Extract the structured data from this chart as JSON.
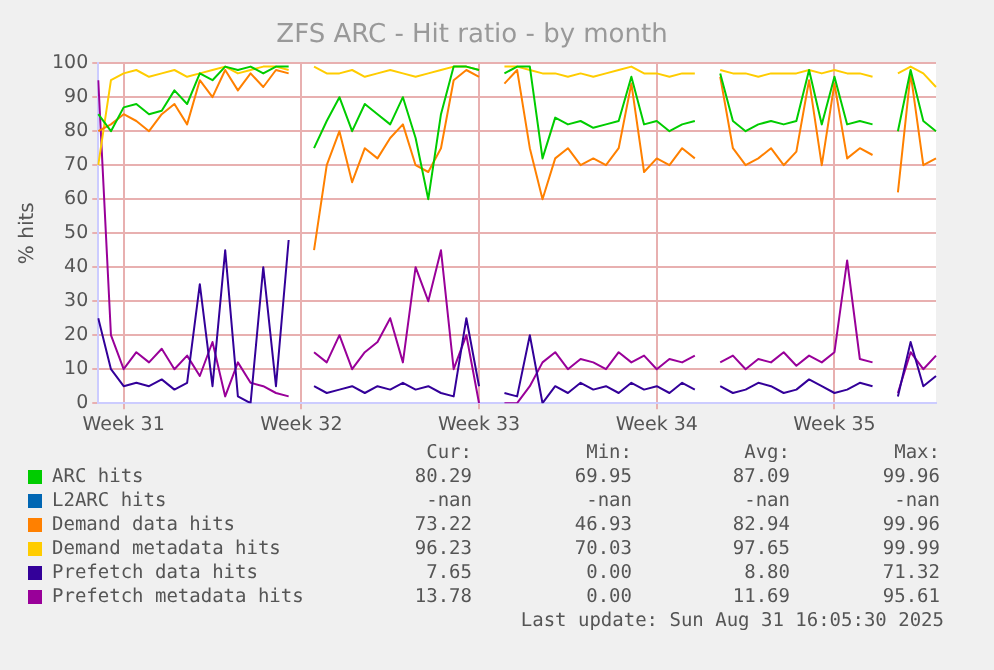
{
  "chart_data": {
    "type": "line",
    "title": "ZFS ARC - Hit ratio - by month",
    "ylabel": "% hits",
    "categories": [
      null,
      null,
      "Week 31",
      null,
      null,
      null,
      null,
      null,
      null,
      null,
      null,
      null,
      null,
      null,
      null,
      null,
      "Week 32",
      null,
      null,
      null,
      null,
      null,
      null,
      null,
      null,
      null,
      null,
      null,
      null,
      null,
      "Week 33",
      null,
      null,
      null,
      null,
      null,
      null,
      null,
      null,
      null,
      null,
      null,
      null,
      null,
      "Week 34",
      null,
      null,
      null,
      null,
      null,
      null,
      null,
      null,
      null,
      null,
      null,
      null,
      null,
      "Week 35",
      null,
      null,
      null,
      null,
      null,
      null,
      null,
      null
    ],
    "ylim": [
      0,
      100
    ],
    "yticks": [
      0,
      10,
      20,
      30,
      40,
      50,
      60,
      70,
      80,
      90,
      100
    ],
    "grid": true,
    "legend": "bottom",
    "line_style": "solid",
    "series": [
      {
        "name": "ARC hits",
        "color": "#00cc00",
        "values": [
          85,
          80,
          87,
          88,
          85,
          86,
          92,
          88,
          97,
          95,
          99,
          98,
          99,
          97,
          99,
          99,
          null,
          75,
          83,
          90,
          80,
          88,
          85,
          82,
          90,
          78,
          60,
          85,
          99,
          99,
          98,
          null,
          97,
          99,
          99,
          72,
          84,
          82,
          83,
          81,
          82,
          83,
          96,
          82,
          83,
          80,
          82,
          83,
          null,
          97,
          83,
          80,
          82,
          83,
          82,
          83,
          98,
          82,
          96,
          82,
          83,
          82,
          null,
          80,
          98,
          83,
          80
        ]
      },
      {
        "name": "L2ARC hits",
        "color": "#0066b3",
        "values": [
          null,
          null,
          null,
          null,
          null,
          null,
          null,
          null,
          null,
          null,
          null,
          null,
          null,
          null,
          null,
          null,
          null,
          null,
          null,
          null,
          null,
          null,
          null,
          null,
          null,
          null,
          null,
          null,
          null,
          null,
          null,
          null,
          null,
          null,
          null,
          null,
          null,
          null,
          null,
          null,
          null,
          null,
          null,
          null,
          null,
          null,
          null,
          null,
          null,
          null,
          null,
          null,
          null,
          null,
          null,
          null,
          null,
          null,
          null,
          null,
          null,
          null,
          null,
          null,
          null,
          null,
          null
        ]
      },
      {
        "name": "Demand data hits",
        "color": "#ff8000",
        "values": [
          80,
          82,
          85,
          83,
          80,
          85,
          88,
          82,
          95,
          90,
          98,
          92,
          97,
          93,
          98,
          97,
          null,
          45,
          70,
          80,
          65,
          75,
          72,
          78,
          82,
          70,
          68,
          75,
          95,
          98,
          96,
          null,
          94,
          98,
          75,
          60,
          72,
          75,
          70,
          72,
          70,
          75,
          94,
          68,
          72,
          70,
          75,
          72,
          null,
          96,
          75,
          70,
          72,
          75,
          70,
          74,
          95,
          70,
          94,
          72,
          75,
          73,
          null,
          62,
          97,
          70,
          72
        ]
      },
      {
        "name": "Demand metadata hits",
        "color": "#ffcc00",
        "values": [
          70,
          95,
          97,
          98,
          96,
          97,
          98,
          96,
          97,
          98,
          99,
          97,
          98,
          99,
          99,
          98,
          null,
          99,
          97,
          97,
          98,
          96,
          97,
          98,
          97,
          96,
          97,
          98,
          99,
          99,
          98,
          null,
          99,
          99,
          98,
          97,
          97,
          96,
          97,
          96,
          97,
          98,
          99,
          97,
          97,
          96,
          97,
          97,
          null,
          98,
          97,
          97,
          96,
          97,
          97,
          97,
          98,
          97,
          98,
          97,
          97,
          96,
          null,
          97,
          99,
          97,
          93
        ]
      },
      {
        "name": "Prefetch data hits",
        "color": "#330099",
        "values": [
          25,
          10,
          5,
          6,
          5,
          7,
          4,
          6,
          35,
          5,
          45,
          2,
          0,
          40,
          5,
          48,
          null,
          5,
          3,
          4,
          5,
          3,
          5,
          4,
          6,
          4,
          5,
          3,
          2,
          25,
          5,
          null,
          3,
          2,
          20,
          0,
          5,
          3,
          6,
          4,
          5,
          3,
          6,
          4,
          5,
          3,
          6,
          4,
          null,
          5,
          3,
          4,
          6,
          5,
          3,
          4,
          7,
          5,
          3,
          4,
          6,
          5,
          null,
          2,
          18,
          5,
          8
        ]
      },
      {
        "name": "Prefetch metadata hits",
        "color": "#990099",
        "values": [
          95,
          20,
          10,
          15,
          12,
          16,
          10,
          14,
          8,
          18,
          2,
          12,
          6,
          5,
          3,
          2,
          null,
          15,
          12,
          20,
          10,
          15,
          18,
          25,
          12,
          40,
          30,
          45,
          10,
          20,
          0,
          null,
          0,
          0,
          5,
          12,
          15,
          10,
          13,
          12,
          10,
          15,
          12,
          14,
          10,
          13,
          12,
          14,
          null,
          12,
          14,
          10,
          13,
          12,
          15,
          11,
          14,
          12,
          15,
          42,
          13,
          12,
          null,
          3,
          15,
          10,
          14
        ]
      }
    ],
    "annotations": [
      "Cur:",
      "Min:",
      "Avg:",
      "Max:",
      "80.29",
      "69.95",
      "87.09",
      "99.96",
      "-nan",
      "-nan",
      "-nan",
      "-nan",
      "73.22",
      "46.93",
      "82.94",
      "99.96",
      "96.23",
      "70.03",
      "97.65",
      "99.99",
      "7.65",
      "0.00",
      "8.80",
      "71.32",
      "13.78",
      "0.00",
      "11.69",
      "95.61",
      "Last update: Sun Aug 31 16:05:30 2025"
    ]
  }
}
